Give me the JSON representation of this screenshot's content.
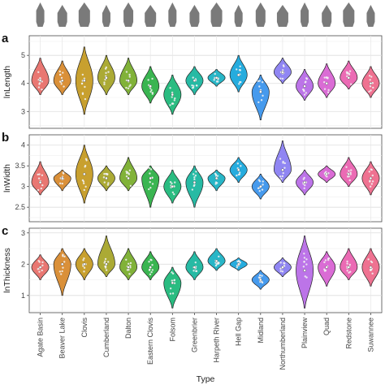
{
  "figure": {
    "x_axis_title": "Type",
    "colors": [
      "#e8706a",
      "#d88a2e",
      "#c59b24",
      "#a6a52a",
      "#7aae2e",
      "#2fb148",
      "#1fb87a",
      "#1bb69f",
      "#1cb2c4",
      "#1aa8dc",
      "#3c95ec",
      "#8a7ff2",
      "#b86de7",
      "#d864d3",
      "#ea63b0",
      "#ee6a8b"
    ],
    "silhouette_color": "#7a7a7a",
    "icons": [
      "projectile-point-icon",
      "projectile-point-icon",
      "projectile-point-icon",
      "projectile-point-icon",
      "projectile-point-icon",
      "projectile-point-icon",
      "projectile-point-icon",
      "projectile-point-icon",
      "projectile-point-icon",
      "projectile-point-icon",
      "projectile-point-icon",
      "projectile-point-icon",
      "projectile-point-icon",
      "projectile-point-icon",
      "projectile-point-icon",
      "projectile-point-icon"
    ]
  },
  "chart_data": [
    {
      "type": "violin",
      "panel_label": "a",
      "ylabel": "lnLength",
      "ylim": [
        2.4,
        5.7
      ],
      "yticks": [
        3,
        4,
        5
      ],
      "grid": true,
      "categories": [
        "Agate Basin",
        "Beaver Lake",
        "Clovis",
        "Cumberland",
        "Dalton",
        "Eastern Clovis",
        "Folsom",
        "Greenbrier",
        "Harpeth River",
        "Hell Gap",
        "Midland",
        "Northumberland",
        "Plainview",
        "Quad",
        "Redstone",
        "Suwannee"
      ],
      "medians": [
        4.1,
        4.1,
        4.1,
        4.2,
        4.1,
        3.9,
        3.6,
        4.1,
        4.2,
        4.3,
        3.7,
        4.4,
        3.9,
        4.0,
        4.2,
        4.0
      ],
      "mins": [
        3.6,
        3.6,
        2.9,
        3.6,
        3.6,
        3.3,
        2.9,
        3.6,
        3.9,
        3.7,
        2.7,
        4.0,
        3.4,
        3.5,
        3.8,
        3.5
      ],
      "maxs": [
        4.9,
        4.8,
        5.3,
        5.0,
        4.9,
        4.6,
        4.3,
        4.6,
        4.5,
        5.0,
        4.3,
        4.9,
        4.5,
        4.7,
        4.8,
        4.6
      ]
    },
    {
      "type": "violin",
      "panel_label": "b",
      "ylabel": "lnWidth",
      "ylim": [
        2.15,
        4.25
      ],
      "yticks": [
        2.5,
        3.0,
        3.5,
        4.0
      ],
      "grid": true,
      "categories": [
        "Agate Basin",
        "Beaver Lake",
        "Clovis",
        "Cumberland",
        "Dalton",
        "Eastern Clovis",
        "Folsom",
        "Greenbrier",
        "Harpeth River",
        "Hell Gap",
        "Midland",
        "Northumberland",
        "Plainview",
        "Quad",
        "Redstone",
        "Suwannee"
      ],
      "medians": [
        3.1,
        3.2,
        3.3,
        3.2,
        3.2,
        3.2,
        3.0,
        3.1,
        3.2,
        3.4,
        3.0,
        3.4,
        3.1,
        3.3,
        3.3,
        3.2
      ],
      "mins": [
        2.8,
        2.9,
        2.6,
        2.9,
        2.9,
        2.5,
        2.6,
        2.5,
        2.9,
        3.1,
        2.7,
        3.1,
        2.8,
        3.1,
        3.0,
        2.8
      ],
      "maxs": [
        3.6,
        3.4,
        4.0,
        3.5,
        3.7,
        3.5,
        3.4,
        3.5,
        3.4,
        3.7,
        3.3,
        4.1,
        3.4,
        3.5,
        3.7,
        3.6
      ]
    },
    {
      "type": "violin",
      "panel_label": "c",
      "ylabel": "lnThickness",
      "ylim": [
        0.45,
        3.15
      ],
      "yticks": [
        1,
        2,
        3
      ],
      "grid": true,
      "categories": [
        "Agate Basin",
        "Beaver Lake",
        "Clovis",
        "Cumberland",
        "Dalton",
        "Eastern Clovis",
        "Folsom",
        "Greenbrier",
        "Harpeth River",
        "Hell Gap",
        "Midland",
        "Northumberland",
        "Plainview",
        "Quad",
        "Redstone",
        "Suwannee"
      ],
      "medians": [
        1.9,
        2.0,
        2.0,
        2.0,
        1.9,
        1.9,
        1.4,
        1.9,
        2.1,
        2.0,
        1.5,
        1.9,
        1.8,
        1.9,
        1.9,
        1.9
      ],
      "mins": [
        1.5,
        1.0,
        1.5,
        1.6,
        1.5,
        1.5,
        0.6,
        1.5,
        1.8,
        1.8,
        1.2,
        1.6,
        0.6,
        1.3,
        1.5,
        1.3
      ],
      "maxs": [
        2.3,
        2.5,
        2.5,
        2.9,
        2.5,
        2.4,
        1.9,
        2.4,
        2.5,
        2.2,
        1.8,
        2.2,
        2.9,
        2.4,
        2.5,
        2.5
      ]
    }
  ]
}
